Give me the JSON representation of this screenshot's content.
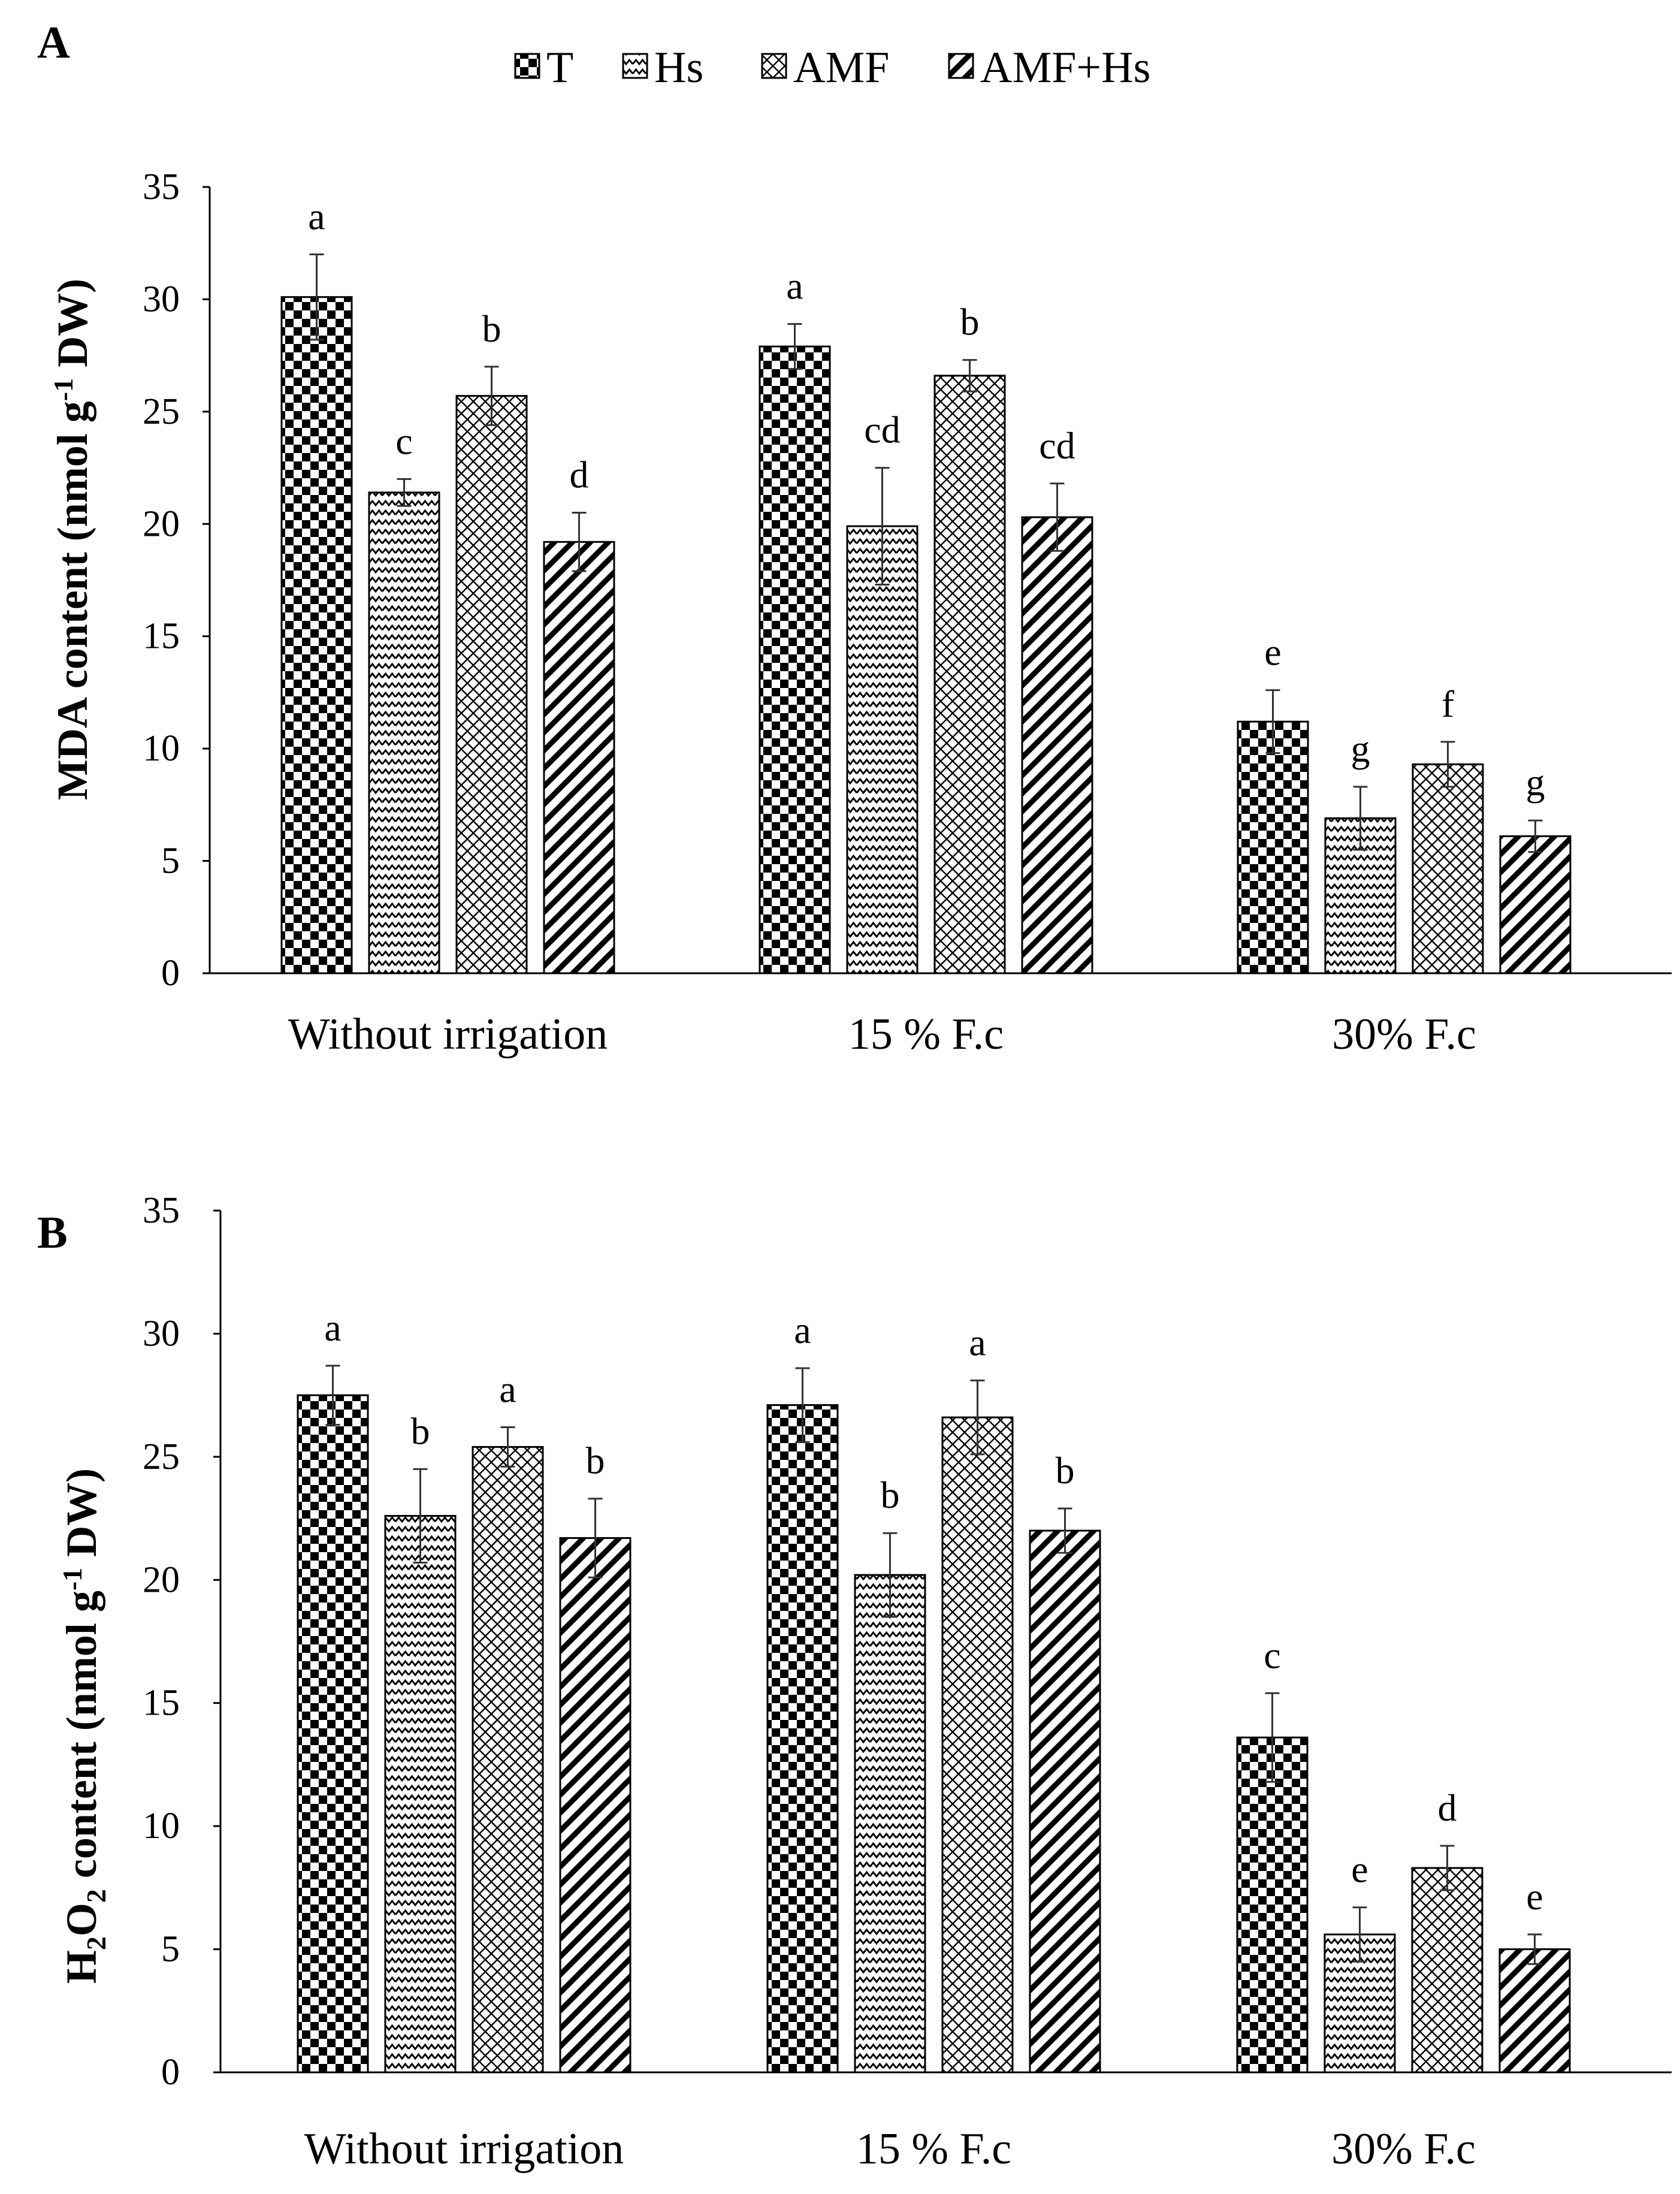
{
  "legend": {
    "items": [
      {
        "label": "T",
        "pattern": "checker"
      },
      {
        "label": "Hs",
        "pattern": "zigzag"
      },
      {
        "label": "AMF",
        "pattern": "crosshatch"
      },
      {
        "label": "AMF+Hs",
        "pattern": "diagonal"
      }
    ]
  },
  "chart_data": [
    {
      "panel": "A",
      "type": "bar",
      "ylabel_parts": [
        "MDA content (nmol g",
        "-1",
        " DW)"
      ],
      "ylim": [
        0,
        35
      ],
      "yticks": [
        0,
        5,
        10,
        15,
        20,
        25,
        30,
        35
      ],
      "categories": [
        "Without irrigation",
        "15 % F.c",
        "30% F.c"
      ],
      "series": [
        {
          "name": "T",
          "values": [
            30.1,
            27.9,
            11.2
          ],
          "errors": [
            1.9,
            1.0,
            1.4
          ],
          "letters": [
            "a",
            "a",
            "e"
          ]
        },
        {
          "name": "Hs",
          "values": [
            21.4,
            19.9,
            6.9
          ],
          "errors": [
            0.6,
            2.6,
            1.4
          ],
          "letters": [
            "c",
            "cd",
            "g"
          ]
        },
        {
          "name": "AMF",
          "values": [
            25.7,
            26.6,
            9.3
          ],
          "errors": [
            1.3,
            0.7,
            1.0
          ],
          "letters": [
            "b",
            "b",
            "f"
          ]
        },
        {
          "name": "AMF+Hs",
          "values": [
            19.2,
            20.3,
            6.1
          ],
          "errors": [
            1.3,
            1.5,
            0.7
          ],
          "letters": [
            "d",
            "cd",
            "g"
          ]
        }
      ]
    },
    {
      "panel": "B",
      "type": "bar",
      "ylabel_parts": [
        "H",
        "2",
        "O",
        "2",
        " content (nmol g",
        "-1",
        " DW)"
      ],
      "ylim": [
        0,
        35
      ],
      "yticks": [
        0,
        5,
        10,
        15,
        20,
        25,
        30,
        35
      ],
      "categories": [
        "Without irrigation",
        "15 % F.c",
        "30% F.c"
      ],
      "series": [
        {
          "name": "T",
          "values": [
            27.5,
            27.1,
            13.6
          ],
          "errors": [
            1.2,
            1.5,
            1.8
          ],
          "letters": [
            "a",
            "a",
            "c"
          ]
        },
        {
          "name": "Hs",
          "values": [
            22.6,
            20.2,
            5.6
          ],
          "errors": [
            1.9,
            1.7,
            1.1
          ],
          "letters": [
            "b",
            "b",
            "e"
          ]
        },
        {
          "name": "AMF",
          "values": [
            25.4,
            26.6,
            8.3
          ],
          "errors": [
            0.8,
            1.5,
            0.9
          ],
          "letters": [
            "a",
            "a",
            "d"
          ]
        },
        {
          "name": "AMF+Hs",
          "values": [
            21.7,
            22.0,
            5.0
          ],
          "errors": [
            1.6,
            0.9,
            0.6
          ],
          "letters": [
            "b",
            "b",
            "e"
          ]
        }
      ]
    }
  ]
}
